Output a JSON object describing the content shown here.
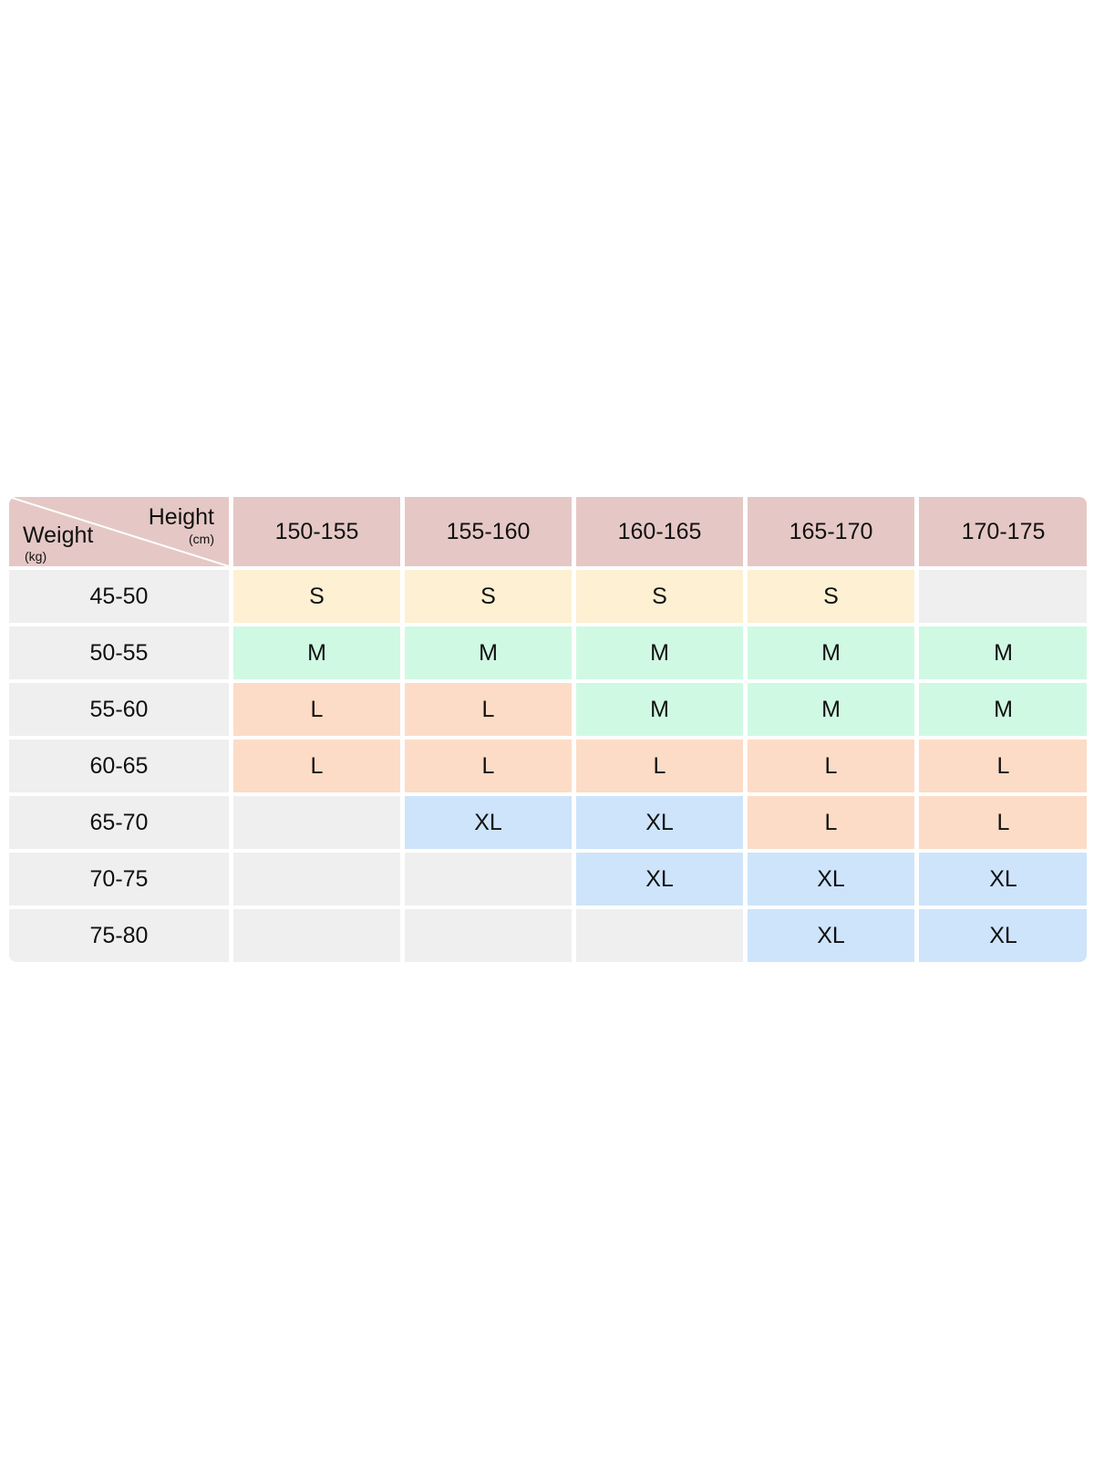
{
  "table": {
    "corner": {
      "height_label": "Height",
      "height_unit": "(cm)",
      "weight_label": "Weight",
      "weight_unit": "(kg)"
    },
    "columns": [
      "150-155",
      "155-160",
      "160-165",
      "165-170",
      "170-175"
    ],
    "rows": [
      {
        "weight": "45-50",
        "sizes": [
          "S",
          "S",
          "S",
          "S",
          ""
        ]
      },
      {
        "weight": "50-55",
        "sizes": [
          "M",
          "M",
          "M",
          "M",
          "M"
        ]
      },
      {
        "weight": "55-60",
        "sizes": [
          "L",
          "L",
          "M",
          "M",
          "M"
        ]
      },
      {
        "weight": "60-65",
        "sizes": [
          "L",
          "L",
          "L",
          "L",
          "L"
        ]
      },
      {
        "weight": "65-70",
        "sizes": [
          "",
          "XL",
          "XL",
          "L",
          "L"
        ]
      },
      {
        "weight": "70-75",
        "sizes": [
          "",
          "",
          "XL",
          "XL",
          "XL"
        ]
      },
      {
        "weight": "75-80",
        "sizes": [
          "",
          "",
          "",
          "XL",
          "XL"
        ]
      }
    ]
  },
  "colors": {
    "header": "#e5c8c5",
    "row_label": "#efefef",
    "S": "#fdf0d3",
    "M": "#d0f9e3",
    "L": "#fcdcc6",
    "XL": "#cde4fb",
    "empty": "#efefef"
  }
}
